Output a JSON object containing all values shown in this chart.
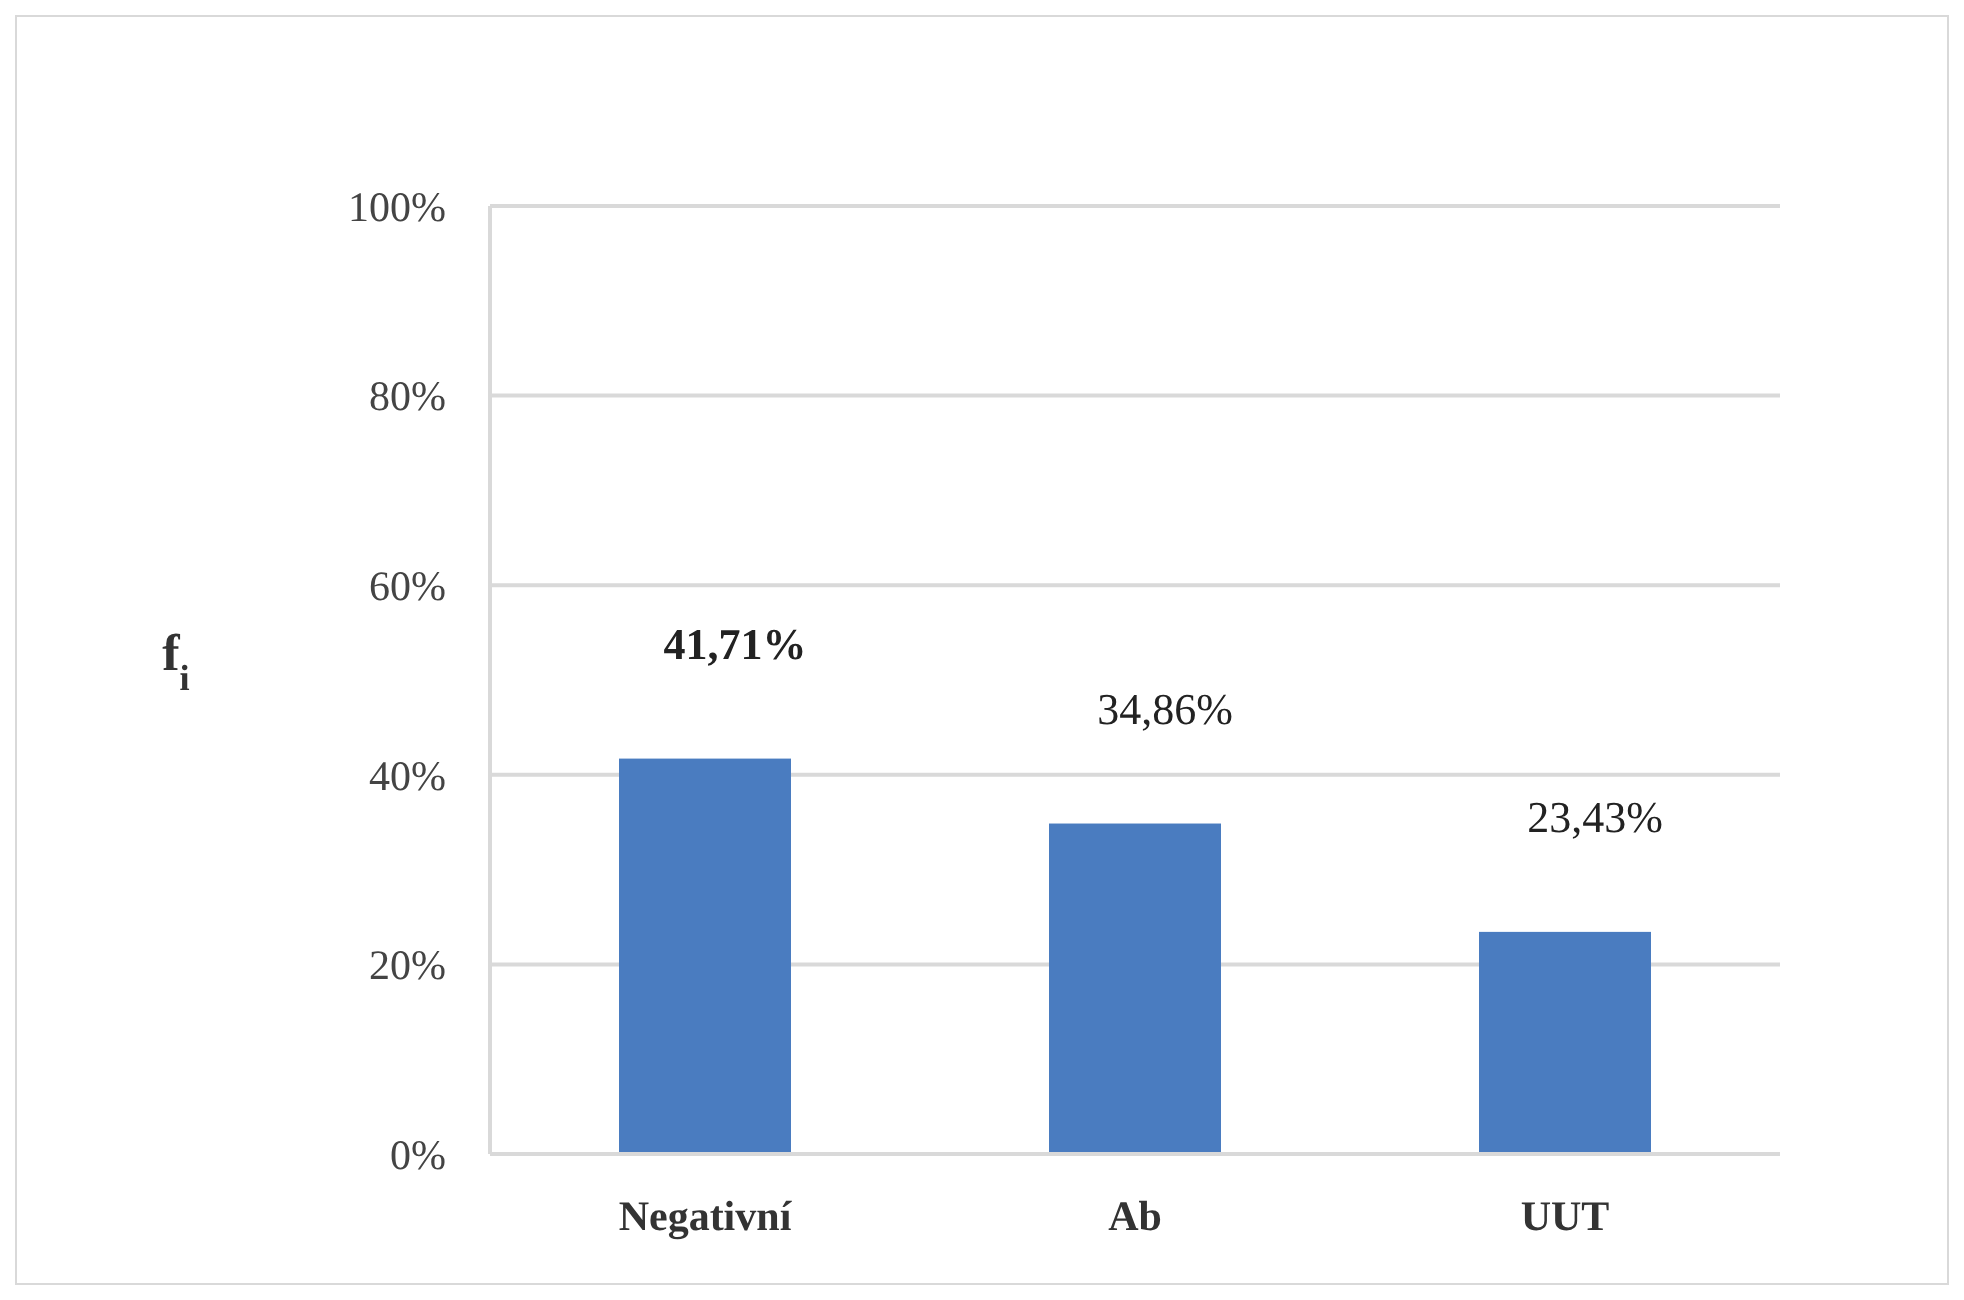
{
  "chart_data": {
    "type": "bar",
    "ylabel": "f$_{i}$",
    "categories": [
      "Negativní",
      "Ab",
      "UUT"
    ],
    "values": [
      41.71,
      34.86,
      23.43
    ],
    "value_labels": [
      "41,71%",
      "34,86%",
      "23,43%"
    ],
    "color": "#4a7cc0",
    "ylim": [
      0,
      100
    ],
    "yticks": [
      {
        "value": 0,
        "label": "0%"
      },
      {
        "value": 20,
        "label": "20%"
      },
      {
        "value": 40,
        "label": "40%"
      },
      {
        "value": 60,
        "label": "60%"
      },
      {
        "value": 80,
        "label": "80%"
      },
      {
        "value": 100,
        "label": "100%"
      }
    ],
    "grid": "y"
  }
}
